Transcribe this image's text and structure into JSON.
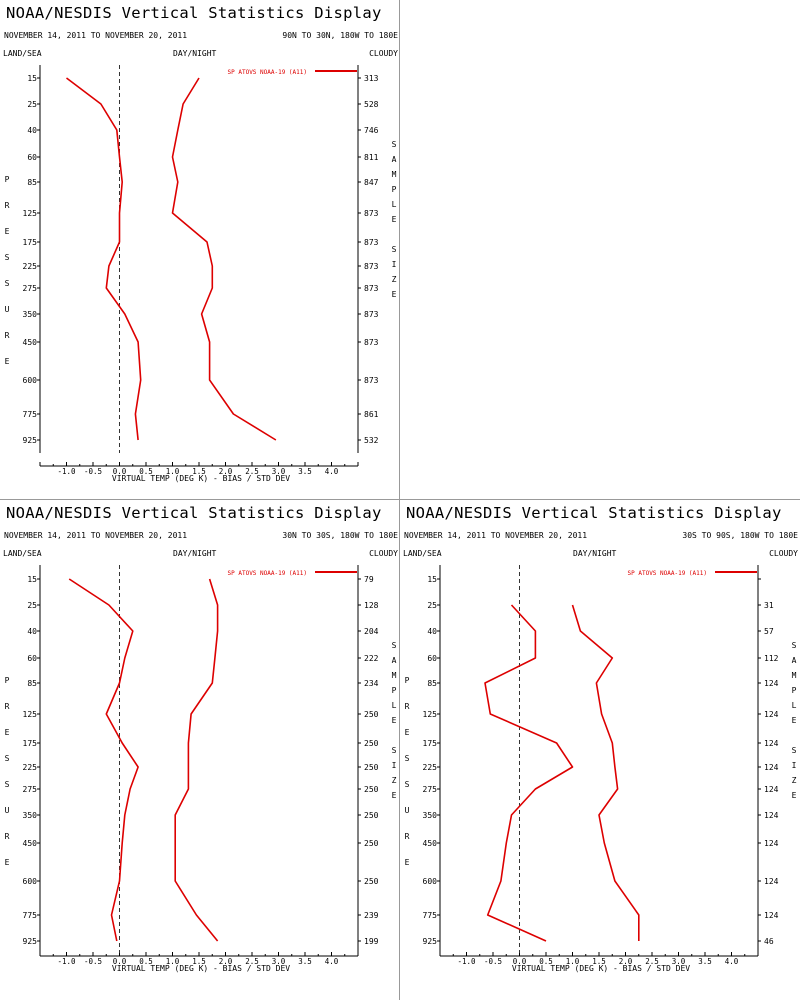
{
  "display_title": "NOAA/NESDIS Vertical Statistics Display",
  "date_range": "NOVEMBER 14, 2011 TO NOVEMBER 20, 2011",
  "header_labels": {
    "land_sea": "LAND/SEA",
    "day_night": "DAY/NIGHT",
    "cloudy": "CLOUDY"
  },
  "colors": {
    "series": "#dd0000",
    "axis": "#000000",
    "zero_line": "#000000",
    "separator": "#999999"
  },
  "chart_data": [
    {
      "type": "line",
      "region": "90N TO 30N, 180W TO 180E",
      "xlabel": "VIRTUAL TEMP (DEG K) - BIAS / STD DEV",
      "ylabel": "PRESSURE",
      "y2label": "SAMPLE SIZE",
      "xlim": [
        -1.5,
        4.5
      ],
      "x_ticks": [
        "-1.0",
        "-0.5",
        "0.0",
        "0.5",
        "1.0",
        "1.5",
        "2.0",
        "2.5",
        "3.0",
        "3.5",
        "4.0"
      ],
      "pressure_levels": [
        "15",
        "25",
        "40",
        "60",
        "85",
        "125",
        "175",
        "225",
        "275",
        "350",
        "450",
        "600",
        "775",
        "925"
      ],
      "sample_sizes": [
        "313",
        "528",
        "746",
        "811",
        "847",
        "873",
        "873",
        "873",
        "873",
        "873",
        "873",
        "873",
        "861",
        "532"
      ],
      "series": [
        {
          "name": "SP ATOVS NOAA-19 (A11)",
          "role": "bias",
          "values": [
            -1.0,
            -0.35,
            -0.05,
            0.0,
            0.05,
            0.0,
            0.0,
            -0.2,
            -0.25,
            0.1,
            0.35,
            0.4,
            0.3,
            0.35
          ]
        },
        {
          "role": "std_dev",
          "values": [
            1.5,
            1.2,
            1.1,
            1.0,
            1.1,
            1.0,
            1.65,
            1.75,
            1.75,
            1.55,
            1.7,
            1.7,
            2.15,
            2.95
          ]
        }
      ]
    },
    {
      "type": "line",
      "region": "30N TO 30S, 180W TO 180E",
      "xlabel": "VIRTUAL TEMP (DEG K) - BIAS / STD DEV",
      "ylabel": "PRESSURE",
      "y2label": "SAMPLE SIZE",
      "xlim": [
        -1.5,
        4.5
      ],
      "x_ticks": [
        "-1.0",
        "-0.5",
        "0.0",
        "0.5",
        "1.0",
        "1.5",
        "2.0",
        "2.5",
        "3.0",
        "3.5",
        "4.0"
      ],
      "pressure_levels": [
        "15",
        "25",
        "40",
        "60",
        "85",
        "125",
        "175",
        "225",
        "275",
        "350",
        "450",
        "600",
        "775",
        "925"
      ],
      "sample_sizes": [
        "79",
        "128",
        "204",
        "222",
        "234",
        "250",
        "250",
        "250",
        "250",
        "250",
        "250",
        "250",
        "239",
        "199"
      ],
      "series": [
        {
          "name": "SP ATOVS NOAA-19 (A11)",
          "role": "bias",
          "values": [
            -0.95,
            -0.2,
            0.25,
            0.1,
            0.0,
            -0.25,
            0.05,
            0.35,
            0.2,
            0.1,
            0.05,
            0.0,
            -0.15,
            -0.05
          ]
        },
        {
          "role": "std_dev",
          "values": [
            1.7,
            1.85,
            1.85,
            1.8,
            1.75,
            1.35,
            1.3,
            1.3,
            1.3,
            1.05,
            1.05,
            1.05,
            1.45,
            1.85
          ]
        }
      ]
    },
    {
      "type": "line",
      "region": "30S TO 90S, 180W TO 180E",
      "xlabel": "VIRTUAL TEMP (DEG K) - BIAS / STD DEV",
      "ylabel": "PRESSURE",
      "y2label": "SAMPLE SIZE",
      "xlim": [
        -1.5,
        4.5
      ],
      "x_ticks": [
        "-1.0",
        "-0.5",
        "0.0",
        "0.5",
        "1.0",
        "1.5",
        "2.0",
        "2.5",
        "3.0",
        "3.5",
        "4.0"
      ],
      "pressure_levels": [
        "15",
        "25",
        "40",
        "60",
        "85",
        "125",
        "175",
        "225",
        "275",
        "350",
        "450",
        "600",
        "775",
        "925"
      ],
      "sample_sizes": [
        "",
        "31",
        "57",
        "112",
        "124",
        "124",
        "124",
        "124",
        "124",
        "124",
        "124",
        "124",
        "124",
        "46"
      ],
      "series": [
        {
          "name": "SP ATOVS NOAA-19 (A11)",
          "role": "bias",
          "values": [
            null,
            -0.15,
            0.3,
            0.3,
            -0.65,
            -0.55,
            0.7,
            1.0,
            0.3,
            -0.15,
            -0.25,
            -0.35,
            -0.6,
            0.5
          ]
        },
        {
          "role": "std_dev",
          "values": [
            null,
            1.0,
            1.15,
            1.75,
            1.45,
            1.55,
            1.75,
            1.8,
            1.85,
            1.5,
            1.6,
            1.8,
            2.25,
            2.25
          ]
        }
      ]
    }
  ]
}
